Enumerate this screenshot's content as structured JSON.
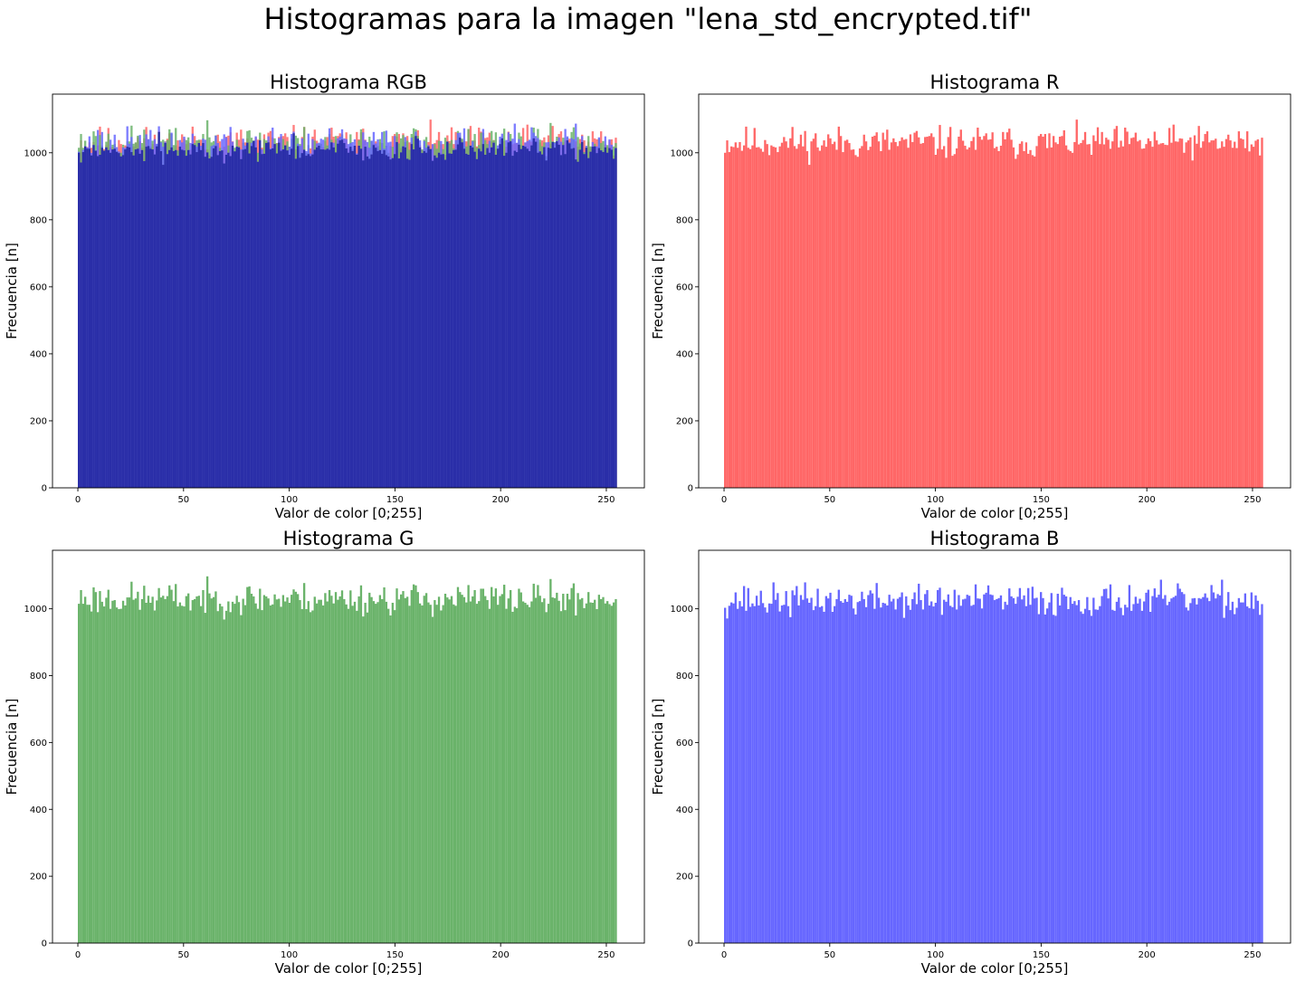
{
  "suptitle": "Histogramas para la imagen \"lena_std_encrypted.tif\"",
  "colors": {
    "red": "#ff6666",
    "green": "#6ab36a",
    "blue": "#6666ff",
    "overlap_navy": "#2a2ea8"
  },
  "chart_data": [
    {
      "id": "rgb",
      "type": "bar",
      "title": "Histograma RGB",
      "xlabel": "Valor de color [0;255]",
      "ylabel": "Frecuencia [n]",
      "xlim": [
        -12,
        268
      ],
      "ylim": [
        0,
        1175
      ],
      "xticks": [
        0,
        50,
        100,
        150,
        200,
        250
      ],
      "yticks": [
        0,
        200,
        400,
        600,
        800,
        1000
      ],
      "grid": false,
      "series": [
        {
          "channel": "red",
          "bins": 256,
          "baseline": 1030,
          "spread": 45,
          "seed": 11
        },
        {
          "channel": "green",
          "bins": 256,
          "baseline": 1030,
          "spread": 45,
          "seed": 23
        },
        {
          "channel": "blue",
          "bins": 256,
          "baseline": 1025,
          "spread": 45,
          "seed": 37
        }
      ]
    },
    {
      "id": "r",
      "type": "bar",
      "title": "Histograma R",
      "xlabel": "Valor de color [0;255]",
      "ylabel": "Frecuencia [n]",
      "xlim": [
        -12,
        268
      ],
      "ylim": [
        0,
        1175
      ],
      "xticks": [
        0,
        50,
        100,
        150,
        200,
        250
      ],
      "yticks": [
        0,
        200,
        400,
        600,
        800,
        1000
      ],
      "grid": false,
      "series": [
        {
          "channel": "red",
          "bins": 256,
          "baseline": 1030,
          "spread": 45,
          "seed": 11
        }
      ]
    },
    {
      "id": "g",
      "type": "bar",
      "title": "Histograma G",
      "xlabel": "Valor de color [0;255]",
      "ylabel": "Frecuencia [n]",
      "xlim": [
        -12,
        268
      ],
      "ylim": [
        0,
        1175
      ],
      "xticks": [
        0,
        50,
        100,
        150,
        200,
        250
      ],
      "yticks": [
        0,
        200,
        400,
        600,
        800,
        1000
      ],
      "grid": false,
      "series": [
        {
          "channel": "green",
          "bins": 256,
          "baseline": 1030,
          "spread": 45,
          "seed": 23
        }
      ]
    },
    {
      "id": "b",
      "type": "bar",
      "title": "Histograma B",
      "xlabel": "Valor de color [0;255]",
      "ylabel": "Frecuencia [n]",
      "xlim": [
        -12,
        268
      ],
      "ylim": [
        0,
        1175
      ],
      "xticks": [
        0,
        50,
        100,
        150,
        200,
        250
      ],
      "yticks": [
        0,
        200,
        400,
        600,
        800,
        1000
      ],
      "grid": false,
      "series": [
        {
          "channel": "blue",
          "bins": 256,
          "baseline": 1025,
          "spread": 45,
          "seed": 37
        }
      ]
    }
  ]
}
